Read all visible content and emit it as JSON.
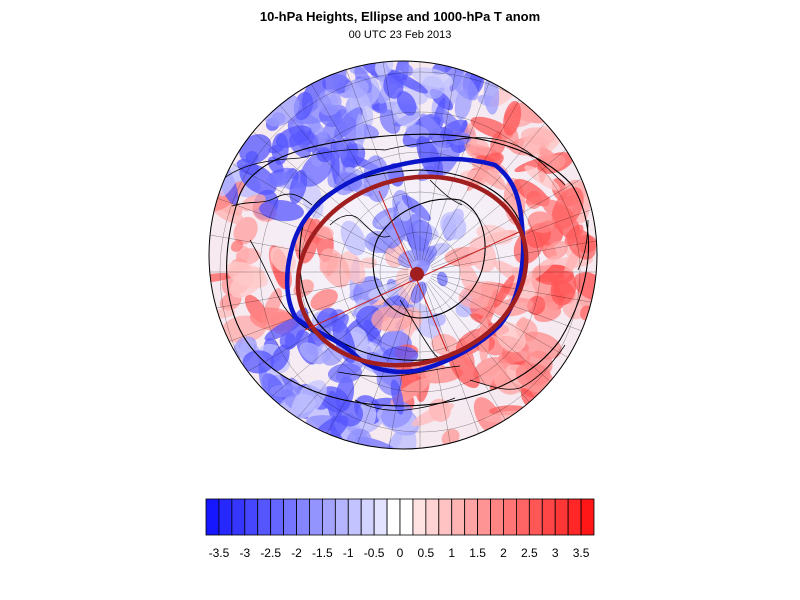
{
  "title": "10-hPa Heights, Ellipse and 1000-hPa T anom",
  "subtitle": "00 UTC 23 Feb 2013",
  "colors": {
    "cold_max": "#1010ff",
    "neutral": "#ffffff",
    "warm_max": "#ff1010",
    "contour_blue": "#0a14c8",
    "ellipse_red": "#a01e1e",
    "contour_black": "#000000"
  },
  "colorbar": {
    "min": -3.75,
    "max": 3.75,
    "step": 0.25,
    "tick_labels": [
      "-3.5",
      "-3",
      "-2.5",
      "-2",
      "-1.5",
      "-1",
      "-0.5",
      "0",
      "0.5",
      "1",
      "1.5",
      "2",
      "2.5",
      "3",
      "3.5"
    ],
    "tick_values": [
      -3.5,
      -3,
      -2.5,
      -2,
      -1.5,
      -1,
      -0.5,
      0,
      0.5,
      1,
      1.5,
      2,
      2.5,
      3,
      3.5
    ]
  }
}
